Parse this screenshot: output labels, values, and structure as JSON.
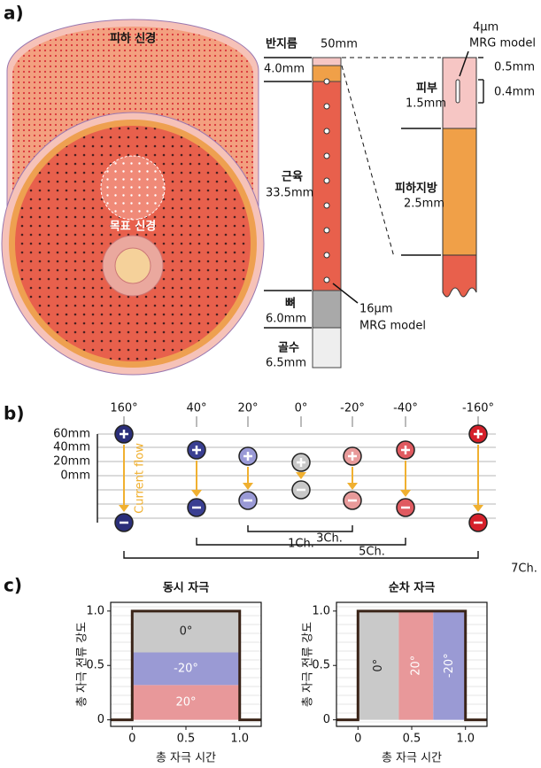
{
  "panel_a": {
    "label": "a)",
    "nerve_top": "피하 신경",
    "nerve_target": "목표 신경",
    "radius_label": "반지름",
    "radius_value": "50mm",
    "fat_thickness": "4.0mm",
    "muscle": "근육",
    "muscle_thickness": "33.5mm",
    "bone": "뼈",
    "bone_thickness": "6.0mm",
    "marrow": "골수",
    "marrow_thickness": "6.5mm",
    "fiber_large": "16μm",
    "fiber_large_model": "MRG model",
    "fiber_small": "4μm",
    "fiber_small_model": "MRG model",
    "skin": "피부",
    "skin_thickness": "1.5mm",
    "gap_upper": "0.5mm",
    "gap_lower": "0.4mm",
    "subcutaneous_fat": "피하지방",
    "subcutaneous_thickness": "2.5mm"
  },
  "panel_b": {
    "label": "b)",
    "angles": [
      "160°",
      "40°",
      "20°",
      "0°",
      "-20°",
      "-40°",
      "-160°"
    ],
    "depths": [
      "60mm",
      "40mm",
      "20mm",
      "0mm"
    ],
    "flow": "Current flow",
    "channels": [
      "1Ch.",
      "3Ch.",
      "5Ch.",
      "7Ch."
    ]
  },
  "panel_c": {
    "label": "c)",
    "charts": [
      {
        "title": "동시 자극",
        "ylabel": "총 자극 전류 강도",
        "xlabel": "총 자극 시간",
        "orientation": "vertical",
        "xlim": [
          -0.2,
          1.2
        ],
        "ylim": [
          -0.06,
          1.08
        ],
        "xticks": [
          0,
          0.5,
          {
            "value": 1,
            "label": "1.0"
          }
        ],
        "yticks": [
          0,
          0.5,
          {
            "value": 1,
            "label": "1.0"
          }
        ],
        "pulse": {
          "duration": 1,
          "amplitude": 1
        },
        "segments": [
          {
            "label": "20°",
            "value": 0.32,
            "color": "#e8989a",
            "label_color": "#ffffff"
          },
          {
            "label": "-20°",
            "value": 0.3,
            "color": "#9a9ad4",
            "label_color": "#ffffff"
          },
          {
            "label": "0°",
            "value": 0.38,
            "color": "#c9c9c9",
            "label_color": "#222222"
          }
        ]
      },
      {
        "title": "순차 자극",
        "ylabel": "총 자극 전류 강도",
        "xlabel": "총 자극 시간",
        "orientation": "horizontal",
        "xlim": [
          -0.2,
          1.2
        ],
        "ylim": [
          -0.06,
          1.08
        ],
        "xticks": [
          0,
          0.5,
          {
            "value": 1,
            "label": "1.0"
          }
        ],
        "yticks": [
          0,
          0.5,
          {
            "value": 1,
            "label": "1.0"
          }
        ],
        "pulse": {
          "duration": 1,
          "amplitude": 1
        },
        "segments": [
          {
            "label": "0°",
            "value": 0.38,
            "color": "#c9c9c9",
            "label_color": "#222222"
          },
          {
            "label": "20°",
            "value": 0.32,
            "color": "#e8989a",
            "label_color": "#ffffff"
          },
          {
            "label": "-20°",
            "value": 0.3,
            "color": "#9a9ad4",
            "label_color": "#ffffff"
          }
        ]
      }
    ]
  }
}
